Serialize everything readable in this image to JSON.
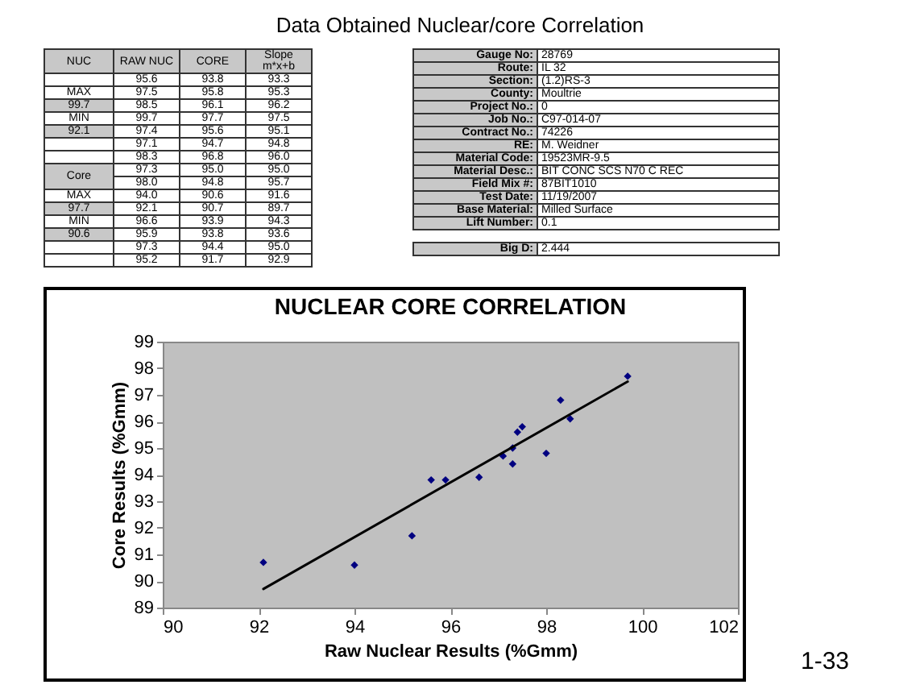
{
  "chart_data": {
    "type": "scatter",
    "title": "NUCLEAR CORE CORRELATION",
    "xlabel": "Raw Nuclear Results (%Gmm)",
    "ylabel": "Core Results (%Gmm)",
    "xlim": [
      90,
      102
    ],
    "ylim": [
      89,
      99
    ],
    "xticks": [
      90,
      92,
      94,
      96,
      98,
      100,
      102
    ],
    "yticks": [
      89,
      90,
      91,
      92,
      93,
      94,
      95,
      96,
      97,
      98,
      99
    ],
    "grid": false,
    "marker": "diamond",
    "series": [
      {
        "color": "#000080",
        "x": [
          95.6,
          97.5,
          98.5,
          99.7,
          97.4,
          97.1,
          98.3,
          97.3,
          98.0,
          94.0,
          92.1,
          96.6,
          95.9,
          97.3,
          95.2
        ],
        "values": [
          93.8,
          95.8,
          96.1,
          97.7,
          95.6,
          94.7,
          96.8,
          95.0,
          94.8,
          90.6,
          90.7,
          93.9,
          93.8,
          94.4,
          91.7
        ]
      },
      {
        "type": "line",
        "marker": "none",
        "color": "#000000",
        "x": [
          92.1,
          99.7
        ],
        "values": [
          89.7,
          97.5
        ]
      }
    ],
    "annotations": [
      "Data Obtained Nuclear/core Correlation",
      "NUC",
      "RAW NUC",
      "CORE",
      "Slope m*x+b",
      "95.6",
      "93.8",
      "93.3",
      "97.5",
      "95.8",
      "95.3",
      "98.5",
      "96.1",
      "96.2",
      "99.7",
      "97.7",
      "97.5",
      "97.4",
      "95.6",
      "95.1",
      "97.1",
      "94.7",
      "94.8",
      "98.3",
      "96.8",
      "96.0",
      "97.3",
      "95.0",
      "95.0",
      "98.0",
      "94.8",
      "95.7",
      "94.0",
      "90.6",
      "91.6",
      "92.1",
      "90.7",
      "89.7",
      "96.6",
      "93.9",
      "94.3",
      "95.9",
      "93.8",
      "93.6",
      "97.3",
      "94.4",
      "95.0",
      "95.2",
      "91.7",
      "92.9",
      "MAX",
      "99.7",
      "MIN",
      "92.1",
      "Core",
      "MAX",
      "97.7",
      "MIN",
      "90.6",
      "Gauge No:",
      "28769",
      "Route:",
      "IL 32",
      "Section:",
      "(1.2)RS-3",
      "County:",
      "Moultrie",
      "Project No.:",
      "0",
      "Job No.:",
      "C97-014-07",
      "Contract No.:",
      "74226",
      "RE:",
      "M. Weidner",
      "Material Code:",
      "19523MR-9.5",
      "Material Desc.:",
      "BIT CONC SCS N70 C REC",
      "Field Mix #:",
      "87BIT1010",
      "Test Date:",
      "11/19/2007",
      "Base Material:",
      "Milled Surface",
      "Lift Number:",
      "0.1",
      "Big D:",
      "2.444",
      "1-33"
    ]
  }
}
